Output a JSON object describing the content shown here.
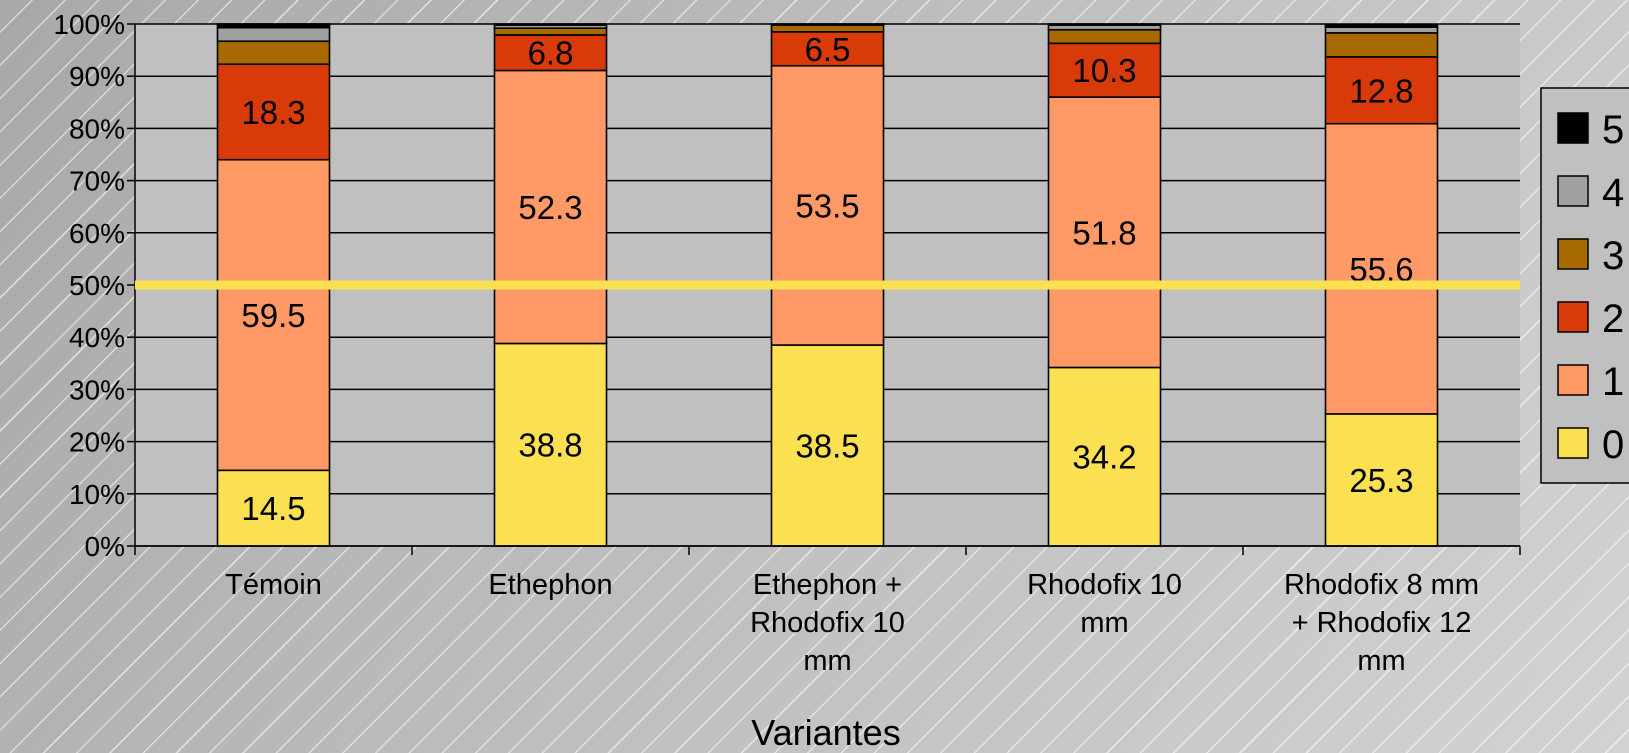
{
  "chart_data": {
    "type": "bar",
    "stacked": true,
    "percent_stacked": true,
    "xlabel": "Variantes",
    "ylabel": "",
    "ylim": [
      0,
      100
    ],
    "y_ticks": [
      "0%",
      "10%",
      "20%",
      "30%",
      "40%",
      "50%",
      "60%",
      "70%",
      "80%",
      "90%",
      "100%"
    ],
    "grid": true,
    "legend_position": "right",
    "categories": [
      [
        "Témoin"
      ],
      [
        "Ethephon"
      ],
      [
        "Ethephon +",
        "Rhodofix 10",
        "mm"
      ],
      [
        "Rhodofix 10",
        "mm"
      ],
      [
        "Rhodofix 8 mm",
        "+ Rhodofix 12",
        "mm"
      ]
    ],
    "series": [
      {
        "name": "0",
        "color": "#FBE052",
        "values": [
          14.5,
          38.8,
          38.5,
          34.2,
          25.3
        ],
        "labels": [
          "14.5",
          "38.8",
          "38.5",
          "34.2",
          "25.3"
        ]
      },
      {
        "name": "1",
        "color": "#FF9966",
        "values": [
          59.5,
          52.3,
          53.5,
          51.8,
          55.6
        ],
        "labels": [
          "59.5",
          "52.3",
          "53.5",
          "51.8",
          "55.6"
        ]
      },
      {
        "name": "2",
        "color": "#D83A0A",
        "values": [
          18.3,
          6.8,
          6.5,
          10.3,
          12.8
        ],
        "labels": [
          "18.3",
          "6.8",
          "6.5",
          "10.3",
          "12.8"
        ]
      },
      {
        "name": "3",
        "color": "#A66A00",
        "values": [
          4.4,
          1.3,
          1.3,
          2.6,
          4.6
        ],
        "labels": [
          "",
          "",
          "",
          "",
          ""
        ]
      },
      {
        "name": "4",
        "color": "#A0A0A0",
        "values": [
          2.6,
          0.6,
          0.2,
          0.9,
          1.1
        ],
        "labels": [
          "",
          "",
          "",
          "",
          ""
        ]
      },
      {
        "name": "5",
        "color": "#000000",
        "values": [
          0.7,
          0.2,
          0.0,
          0.2,
          0.5
        ],
        "labels": [
          "",
          "",
          "",
          "",
          ""
        ]
      }
    ],
    "reference_line": {
      "y": 50,
      "color": "#FBE052"
    },
    "plot_background": "#C0C0C0"
  }
}
